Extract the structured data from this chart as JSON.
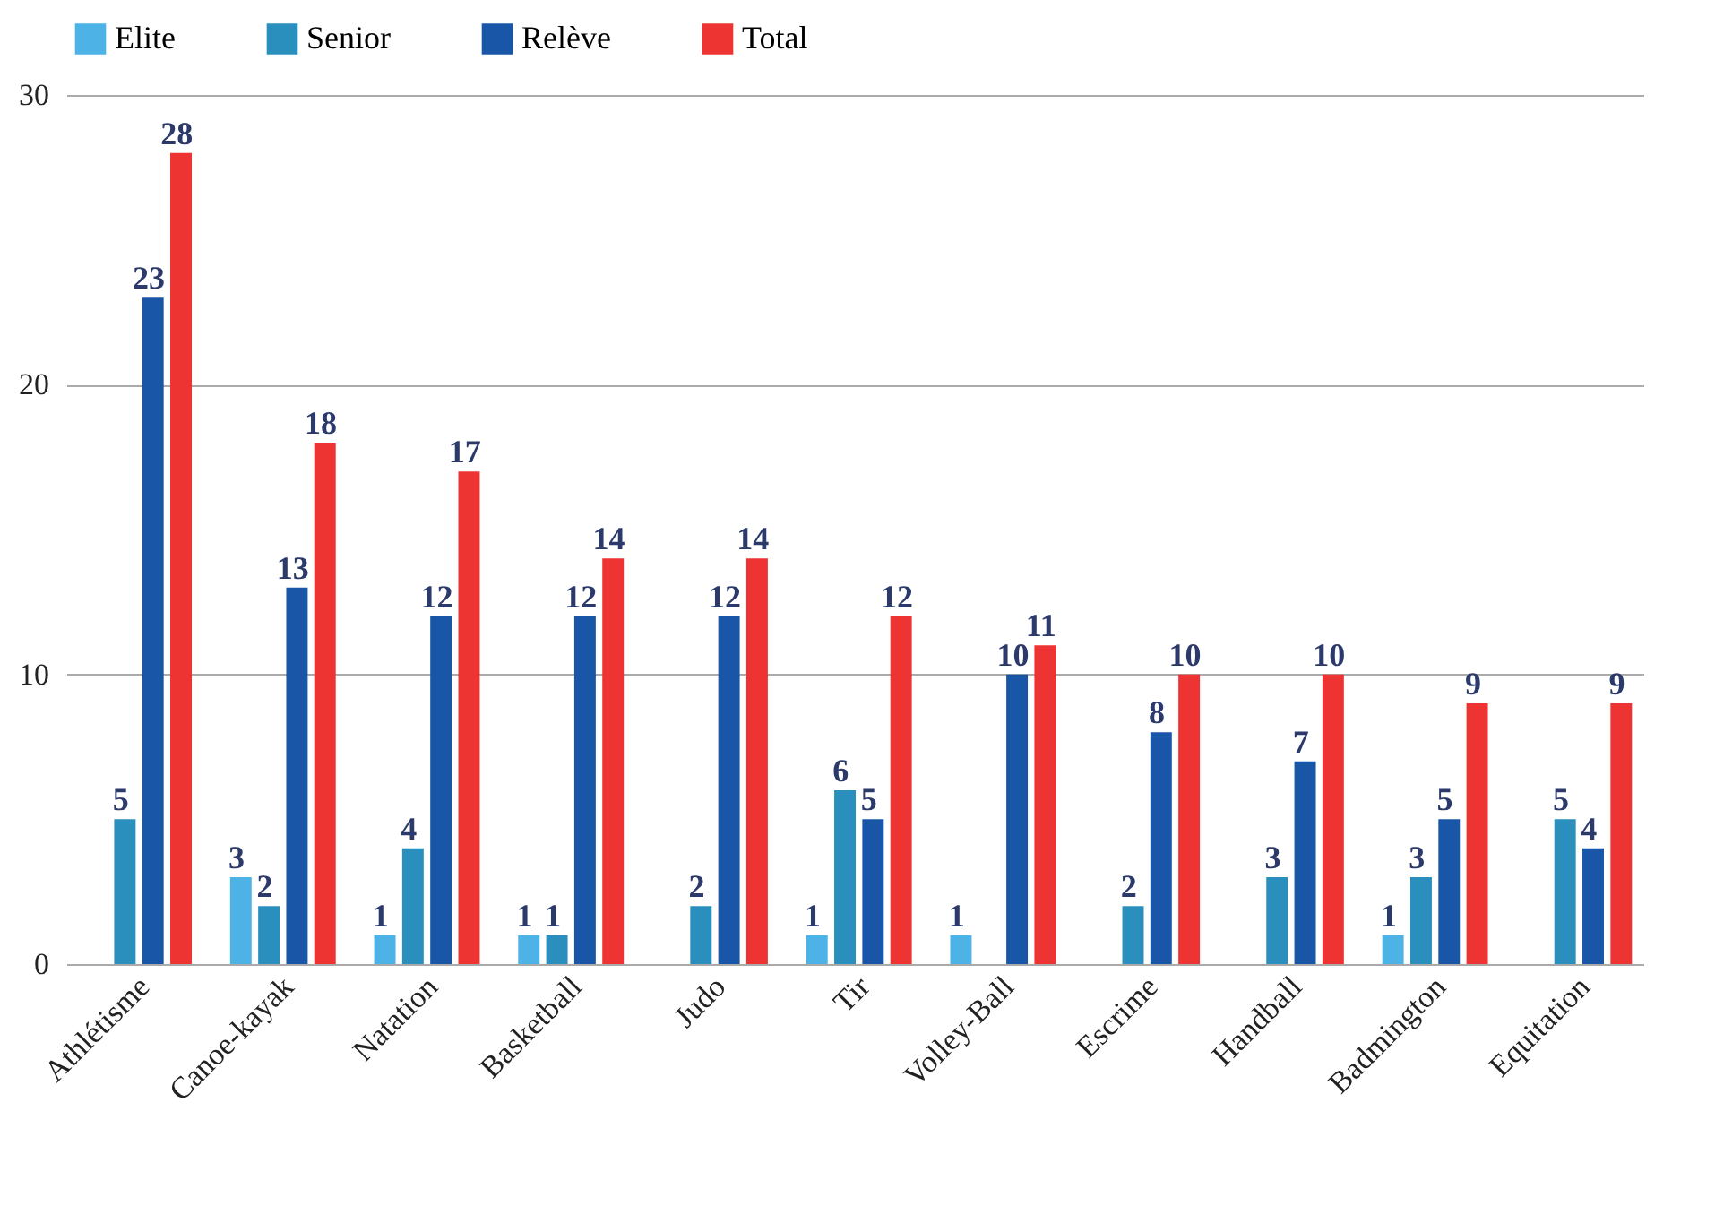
{
  "chart_data": {
    "type": "bar",
    "categories": [
      "Athlétisme",
      "Canoe-kayak",
      "Natation",
      "Basketball",
      "Judo",
      "Tir",
      "Volley-Ball",
      "Escrime",
      "Handball",
      "Badmington",
      "Equitation"
    ],
    "series": [
      {
        "name": "Elite",
        "color": "#4db3e6",
        "values": [
          null,
          3,
          1,
          1,
          null,
          1,
          1,
          null,
          null,
          1,
          null
        ]
      },
      {
        "name": "Senior",
        "color": "#2a8fbd",
        "values": [
          5,
          2,
          4,
          1,
          2,
          6,
          null,
          2,
          3,
          3,
          5
        ]
      },
      {
        "name": "Relève",
        "color": "#1a56a8",
        "values": [
          23,
          13,
          12,
          12,
          12,
          5,
          10,
          8,
          7,
          5,
          4
        ]
      },
      {
        "name": "Total",
        "color": "#ee3333",
        "values": [
          28,
          18,
          17,
          14,
          14,
          12,
          11,
          10,
          10,
          9,
          9
        ]
      }
    ],
    "ylim": [
      0,
      30
    ],
    "yticks": [
      0,
      10,
      20,
      30
    ],
    "grid": "y",
    "legend": "top",
    "data_labels": true
  }
}
